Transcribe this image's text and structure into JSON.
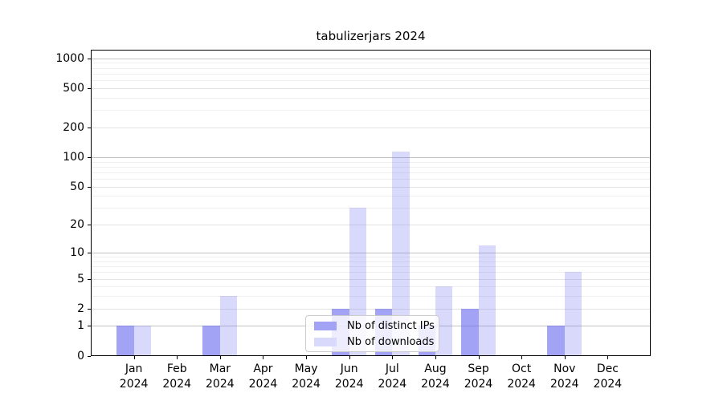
{
  "title": "tabulizerjars 2024",
  "legend": {
    "items": [
      {
        "label": "Nb of distinct IPs",
        "series": "distinct_ips"
      },
      {
        "label": "Nb of downloads",
        "series": "downloads"
      }
    ]
  },
  "colors": {
    "bar_base": "#6666f0",
    "distinct_ips_alpha": 0.6,
    "downloads_alpha": 0.25,
    "grid_decade": "#c3c3c3",
    "grid_major": "#e3e3e3",
    "grid_minor": "#efefef",
    "spine": "#000000",
    "legend_border": "#cccccc",
    "text": "#000000"
  },
  "axes": {
    "y_tick_labels": [
      "0",
      "1",
      "2",
      "5",
      "10",
      "20",
      "50",
      "100",
      "200",
      "500",
      "1000"
    ],
    "x_tick_month_labels": [
      "Jan",
      "Feb",
      "Mar",
      "Apr",
      "May",
      "Jun",
      "Jul",
      "Aug",
      "Sep",
      "Oct",
      "Nov",
      "Dec"
    ],
    "x_tick_year_label": "2024"
  },
  "chart_data": {
    "type": "bar",
    "title": "tabulizerjars 2024",
    "categories": [
      "Jan 2024",
      "Feb 2024",
      "Mar 2024",
      "Apr 2024",
      "May 2024",
      "Jun 2024",
      "Jul 2024",
      "Aug 2024",
      "Sep 2024",
      "Oct 2024",
      "Nov 2024",
      "Dec 2024"
    ],
    "series": [
      {
        "name": "Nb of distinct IPs",
        "values": [
          1,
          0,
          1,
          0,
          0,
          2,
          2,
          1,
          2,
          0,
          1,
          0
        ]
      },
      {
        "name": "Nb of downloads",
        "values": [
          1,
          0,
          3,
          0,
          0,
          30,
          114,
          4,
          12,
          0,
          6,
          0
        ]
      }
    ],
    "xlabel": "",
    "ylabel": "",
    "yscale": "log1p",
    "ylim": [
      0,
      1224
    ],
    "y_ticks": [
      0,
      1,
      2,
      5,
      10,
      20,
      50,
      100,
      200,
      500,
      1000
    ],
    "y_minor_gridlines": [
      3,
      4,
      6,
      7,
      8,
      9,
      30,
      40,
      60,
      70,
      80,
      90,
      300,
      400,
      600,
      700,
      800,
      900
    ],
    "grid": "on",
    "legend_position": "lower center"
  }
}
